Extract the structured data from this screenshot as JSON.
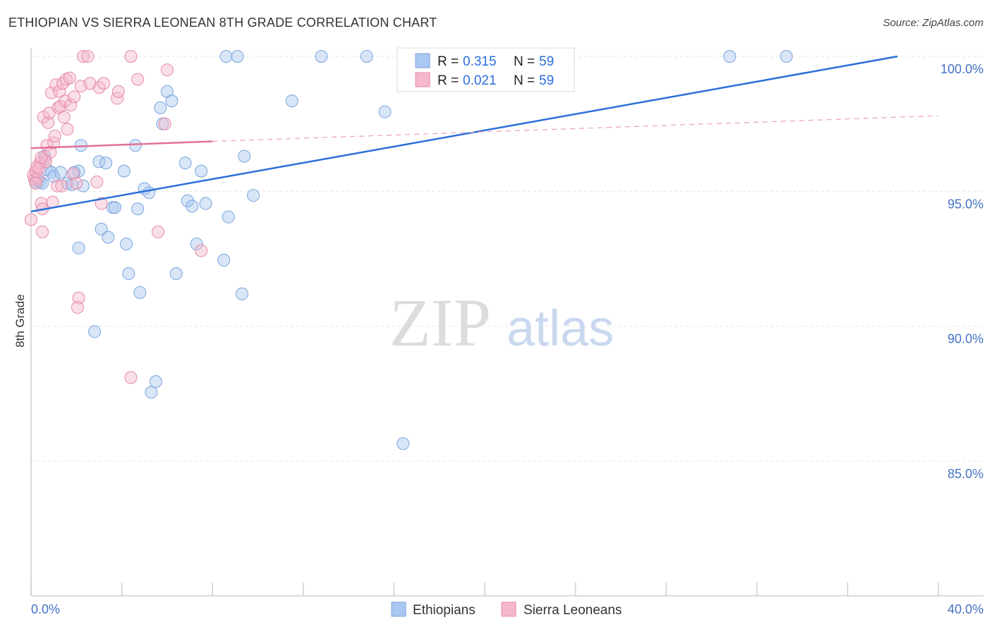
{
  "header": {
    "title": "ETHIOPIAN VS SIERRA LEONEAN 8TH GRADE CORRELATION CHART",
    "source": "Source: ZipAtlas.com"
  },
  "watermark": {
    "zip": "ZIP",
    "atlas": "atlas"
  },
  "legend": {
    "rows": [
      {
        "r_label": "R =",
        "r_value": "0.315",
        "n_label": "N =",
        "n_value": "59",
        "color": "#a9c7f0"
      },
      {
        "r_label": "R =",
        "r_value": "0.021",
        "n_label": "N =",
        "n_value": "59",
        "color": "#f5b8cb"
      }
    ]
  },
  "bottom_legend": [
    {
      "label": "Ethiopians",
      "color": "#a9c7f0"
    },
    {
      "label": "Sierra Leoneans",
      "color": "#f5b8cb"
    }
  ],
  "chart_data": {
    "type": "scatter",
    "title": "ETHIOPIAN VS SIERRA LEONEAN 8TH GRADE CORRELATION CHART",
    "xlabel": "",
    "ylabel": "8th Grade",
    "xlim": [
      0,
      40
    ],
    "ylim": [
      80.5,
      100.7
    ],
    "x_tick_labels": [
      "0.0%",
      "40.0%"
    ],
    "y_ticks": [
      85,
      90,
      95,
      100
    ],
    "y_tick_labels": [
      "85.0%",
      "90.0%",
      "95.0%",
      "100.0%"
    ],
    "grid": true,
    "legend_position": "top-center",
    "series": [
      {
        "name": "Ethiopians",
        "color": "#a9c7f0",
        "stroke": "#7aa3dc",
        "trend": {
          "x": [
            0,
            38.2
          ],
          "y": [
            94.25,
            100.0
          ],
          "color": "#2a6fdb"
        },
        "points": [
          [
            0.2,
            95.35
          ],
          [
            0.4,
            95.35
          ],
          [
            0.6,
            96.3
          ],
          [
            0.7,
            95.8
          ],
          [
            0.9,
            95.7
          ],
          [
            1.0,
            95.55
          ],
          [
            1.3,
            95.7
          ],
          [
            1.6,
            95.3
          ],
          [
            1.8,
            95.25
          ],
          [
            2.1,
            95.75
          ],
          [
            2.2,
            96.7
          ],
          [
            2.3,
            95.2
          ],
          [
            2.1,
            92.9
          ],
          [
            2.8,
            89.8
          ],
          [
            3.0,
            96.1
          ],
          [
            3.1,
            93.6
          ],
          [
            3.3,
            96.05
          ],
          [
            3.4,
            93.3
          ],
          [
            3.6,
            94.4
          ],
          [
            3.7,
            94.4
          ],
          [
            4.1,
            95.75
          ],
          [
            4.2,
            93.05
          ],
          [
            4.3,
            91.95
          ],
          [
            4.6,
            96.7
          ],
          [
            4.7,
            94.35
          ],
          [
            4.8,
            91.25
          ],
          [
            5.0,
            95.1
          ],
          [
            5.2,
            94.95
          ],
          [
            5.3,
            87.55
          ],
          [
            5.5,
            87.95
          ],
          [
            5.7,
            98.1
          ],
          [
            5.8,
            97.5
          ],
          [
            6.0,
            98.7
          ],
          [
            6.2,
            98.35
          ],
          [
            6.4,
            91.95
          ],
          [
            6.8,
            96.05
          ],
          [
            6.9,
            94.65
          ],
          [
            7.1,
            94.45
          ],
          [
            7.3,
            93.05
          ],
          [
            7.5,
            95.75
          ],
          [
            7.7,
            94.55
          ],
          [
            8.5,
            92.45
          ],
          [
            8.6,
            100.0
          ],
          [
            8.7,
            94.05
          ],
          [
            9.1,
            100.0
          ],
          [
            9.3,
            91.2
          ],
          [
            9.4,
            96.3
          ],
          [
            9.8,
            94.85
          ],
          [
            11.5,
            98.35
          ],
          [
            12.8,
            100.0
          ],
          [
            14.8,
            100.0
          ],
          [
            15.6,
            97.95
          ],
          [
            16.4,
            85.65
          ],
          [
            20.5,
            100.0
          ],
          [
            30.8,
            100.0
          ],
          [
            33.3,
            100.0
          ],
          [
            0.3,
            95.4
          ],
          [
            1.9,
            95.7
          ],
          [
            0.5,
            95.3
          ]
        ]
      },
      {
        "name": "Sierra Leoneans",
        "color": "#f5b8cb",
        "stroke": "#e68aa8",
        "trend": {
          "x": [
            0,
            8.0
          ],
          "y": [
            96.6,
            96.85
          ],
          "color": "#e0709a"
        },
        "trend_dashed": {
          "x": [
            8.0,
            40
          ],
          "y": [
            96.85,
            97.8
          ],
          "color": "#eaa5bd"
        },
        "points": [
          [
            0.0,
            93.95
          ],
          [
            0.1,
            95.6
          ],
          [
            0.15,
            95.45
          ],
          [
            0.2,
            95.75
          ],
          [
            0.25,
            95.9
          ],
          [
            0.3,
            95.5
          ],
          [
            0.4,
            96.05
          ],
          [
            0.45,
            94.55
          ],
          [
            0.5,
            94.35
          ],
          [
            0.5,
            93.5
          ],
          [
            0.55,
            97.75
          ],
          [
            0.6,
            96.2
          ],
          [
            0.7,
            96.7
          ],
          [
            0.75,
            97.55
          ],
          [
            0.8,
            97.9
          ],
          [
            0.85,
            96.45
          ],
          [
            0.9,
            98.65
          ],
          [
            0.95,
            94.6
          ],
          [
            1.0,
            96.8
          ],
          [
            1.05,
            97.05
          ],
          [
            1.1,
            98.95
          ],
          [
            1.2,
            98.1
          ],
          [
            1.25,
            98.7
          ],
          [
            1.3,
            98.15
          ],
          [
            1.4,
            99.0
          ],
          [
            1.45,
            97.75
          ],
          [
            1.5,
            98.35
          ],
          [
            1.55,
            99.15
          ],
          [
            1.6,
            97.3
          ],
          [
            1.7,
            99.2
          ],
          [
            1.75,
            98.2
          ],
          [
            1.85,
            95.65
          ],
          [
            1.9,
            98.5
          ],
          [
            2.0,
            95.3
          ],
          [
            2.1,
            91.05
          ],
          [
            2.05,
            90.7
          ],
          [
            2.2,
            98.9
          ],
          [
            2.3,
            100.0
          ],
          [
            2.5,
            100.0
          ],
          [
            2.9,
            95.35
          ],
          [
            3.0,
            98.85
          ],
          [
            3.1,
            94.55
          ],
          [
            3.2,
            99.0
          ],
          [
            3.8,
            98.45
          ],
          [
            3.85,
            98.7
          ],
          [
            4.4,
            88.1
          ],
          [
            4.4,
            100.0
          ],
          [
            4.7,
            99.15
          ],
          [
            5.6,
            93.5
          ],
          [
            5.9,
            97.5
          ],
          [
            6.0,
            99.5
          ],
          [
            7.5,
            92.8
          ],
          [
            0.35,
            95.85
          ],
          [
            0.65,
            96.1
          ],
          [
            1.15,
            95.2
          ],
          [
            0.2,
            95.3
          ],
          [
            0.45,
            96.25
          ],
          [
            2.6,
            99.0
          ],
          [
            1.35,
            95.2
          ]
        ]
      }
    ]
  }
}
